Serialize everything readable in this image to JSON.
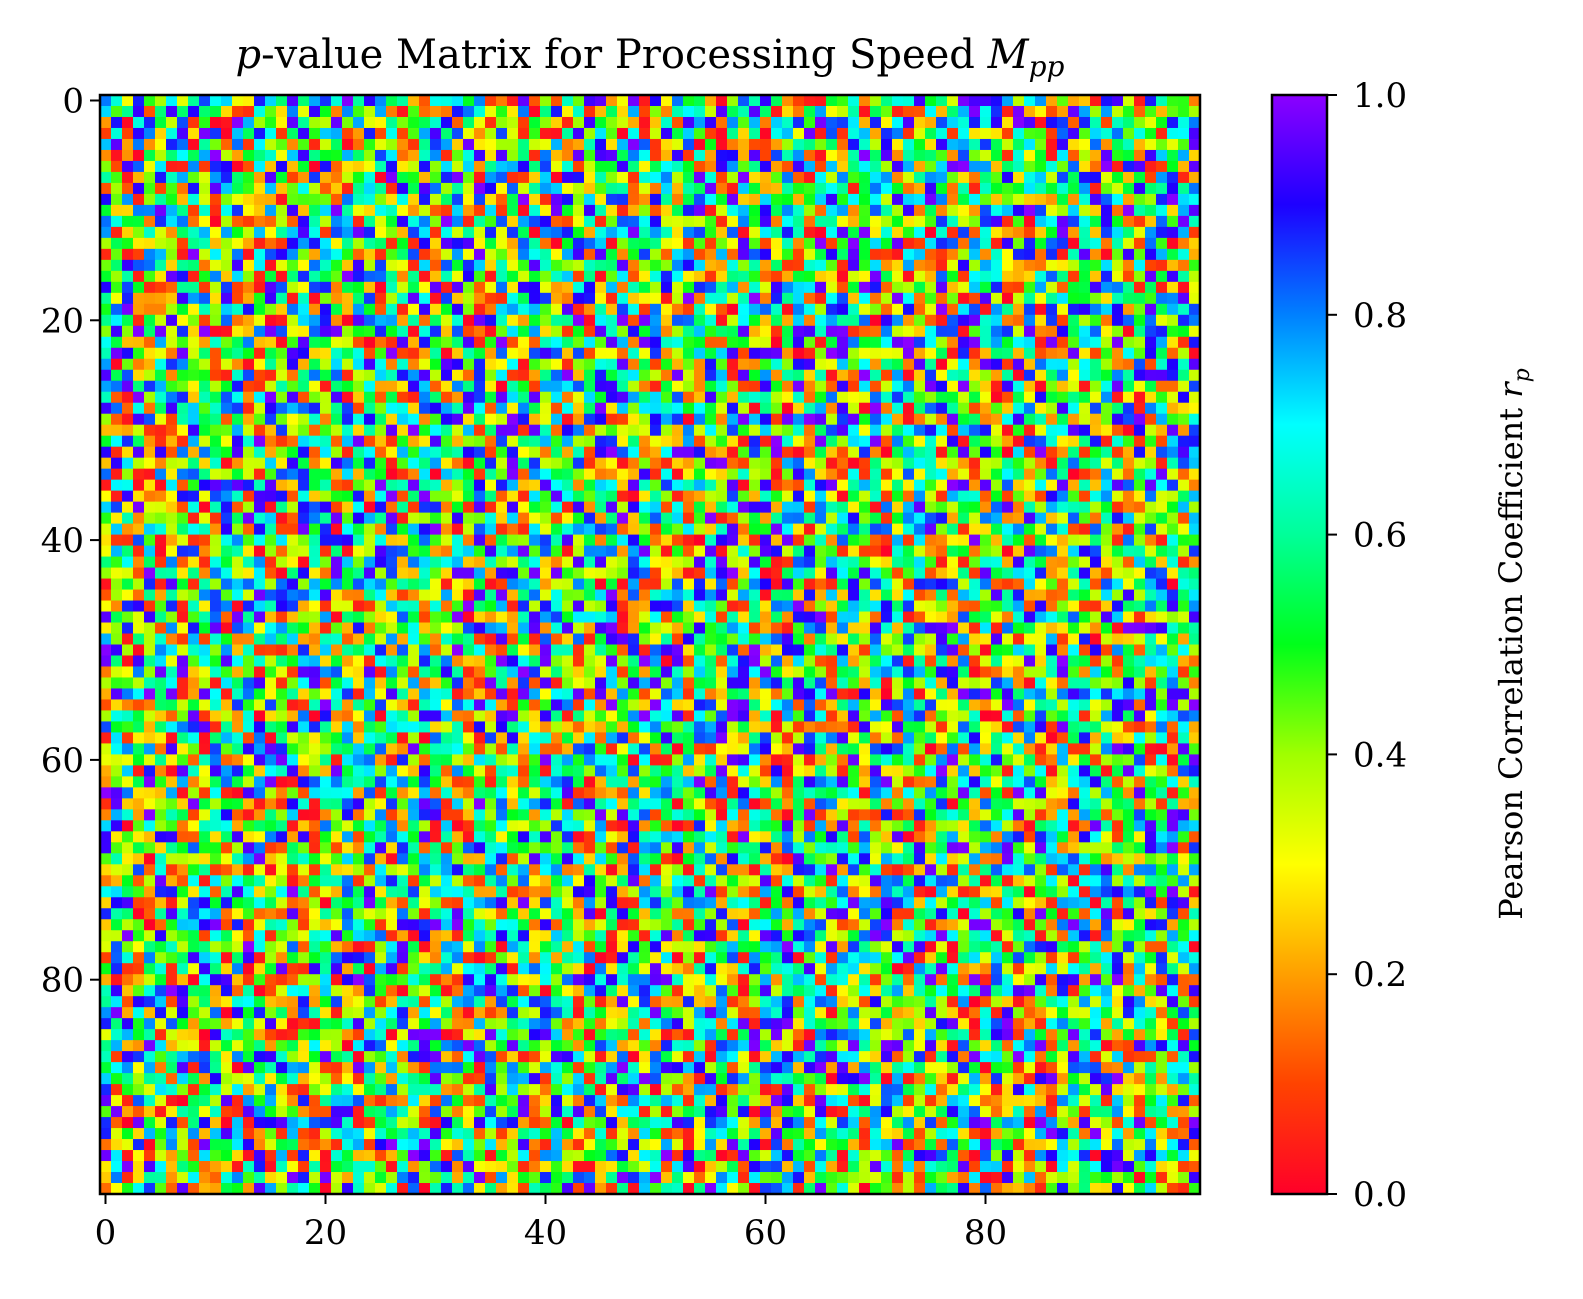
{
  "chart_data": {
    "type": "heatmap",
    "title": {
      "main": "-value Matrix for Processing Speed ",
      "italic_prefix": "p",
      "math_symbol": "M",
      "math_subscript": "pp"
    },
    "rows": 100,
    "cols": 100,
    "value_distribution": "uniform random in [0, 1]",
    "seed": 20240517,
    "x_ticks": [
      0,
      20,
      40,
      60,
      80
    ],
    "y_ticks": [
      0,
      20,
      40,
      60,
      80
    ],
    "x_range": [
      -0.5,
      99.5
    ],
    "y_range": [
      -0.5,
      99.5
    ],
    "y_axis_inverted": true,
    "colormap": "gist_rainbow_r",
    "colormap_stops": [
      {
        "v": 0.0,
        "color": "#ff0029"
      },
      {
        "v": 0.1,
        "color": "#ff4300"
      },
      {
        "v": 0.2,
        "color": "#ff9f00"
      },
      {
        "v": 0.3,
        "color": "#ffff00"
      },
      {
        "v": 0.4,
        "color": "#a0ff00"
      },
      {
        "v": 0.5,
        "color": "#00ff1a"
      },
      {
        "v": 0.6,
        "color": "#00ff99"
      },
      {
        "v": 0.7,
        "color": "#00ffff"
      },
      {
        "v": 0.8,
        "color": "#0080ff"
      },
      {
        "v": 0.9,
        "color": "#1e00ff"
      },
      {
        "v": 1.0,
        "color": "#8c00ff"
      }
    ],
    "colorbar": {
      "label_text": "Pearson Correlation Coefficient ",
      "label_symbol": "r",
      "label_subscript": "p",
      "range": [
        0.0,
        1.0
      ],
      "ticks": [
        "0.0",
        "0.2",
        "0.4",
        "0.6",
        "0.8",
        "1.0"
      ]
    }
  }
}
